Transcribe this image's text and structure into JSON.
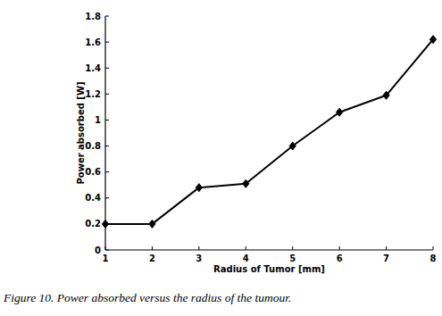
{
  "chart_data": {
    "type": "line",
    "title": "Figure 10. Power absorbed versus the radius of the tumour.",
    "x_label": "Radius of Tumor [mm]",
    "y_label": "Power absorbed [W]",
    "x": [
      1,
      2,
      3,
      4,
      5,
      6,
      7,
      8
    ],
    "series": [
      {
        "name": "Power absorbed",
        "color": "#000000",
        "marker": "diamond",
        "line_style": "solid",
        "values": [
          0.2,
          0.2,
          0.48,
          0.51,
          0.8,
          1.06,
          1.19,
          1.62
        ]
      }
    ],
    "xlim": [
      1,
      8
    ],
    "xticks": [
      1,
      2,
      3,
      4,
      5,
      6,
      7,
      8
    ],
    "ylim": [
      0,
      1.8
    ],
    "yticks": [
      0,
      0.2,
      0.4,
      0.6,
      0.8,
      1,
      1.2,
      1.4,
      1.6,
      1.8
    ],
    "grid": false
  }
}
